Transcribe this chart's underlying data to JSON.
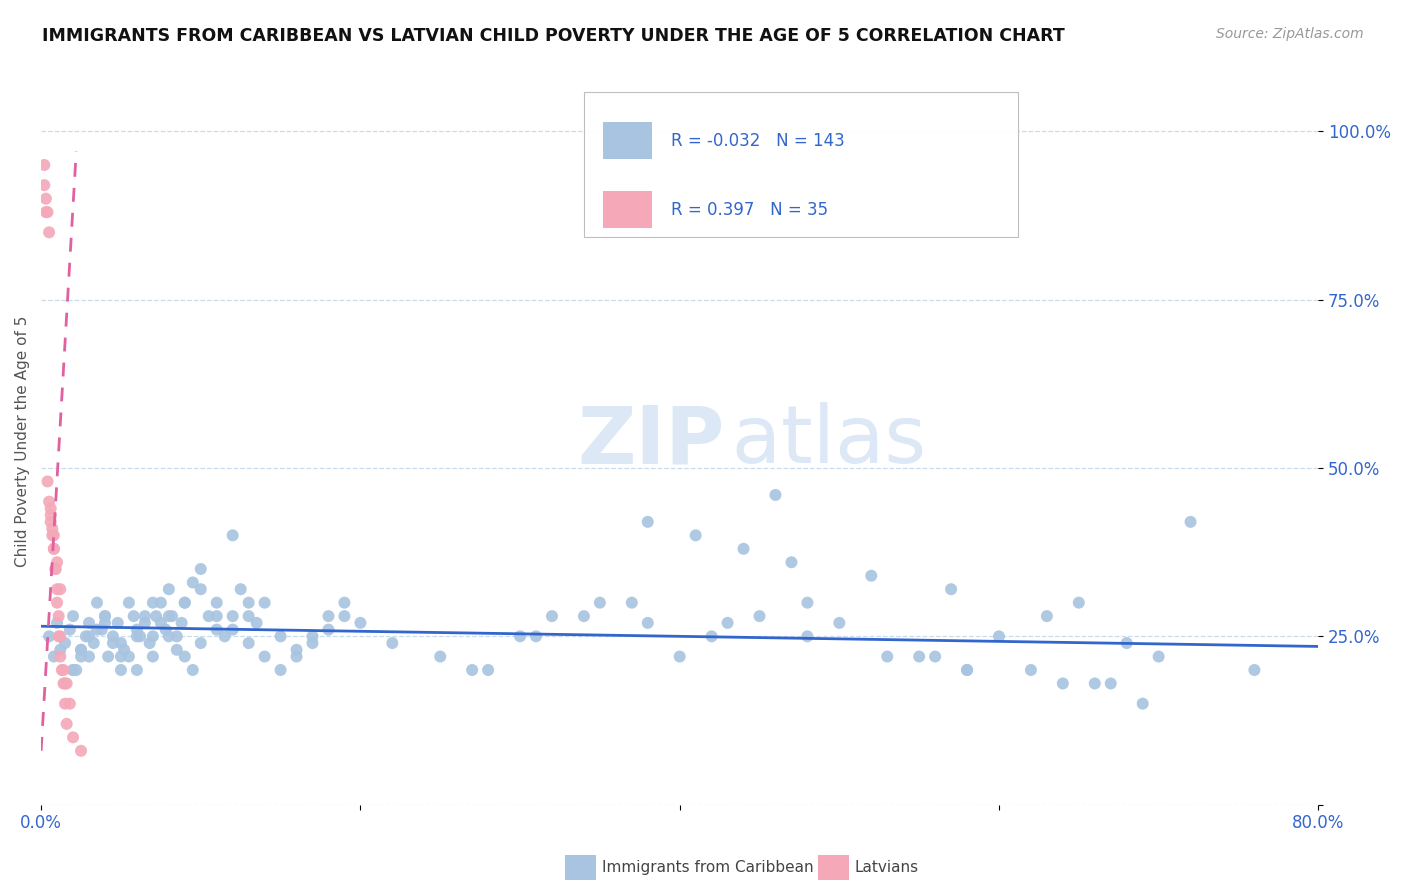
{
  "title": "IMMIGRANTS FROM CARIBBEAN VS LATVIAN CHILD POVERTY UNDER THE AGE OF 5 CORRELATION CHART",
  "source": "Source: ZipAtlas.com",
  "ylabel": "Child Poverty Under the Age of 5",
  "xlim": [
    0.0,
    0.8
  ],
  "ylim": [
    0.0,
    1.08
  ],
  "blue_R": "-0.032",
  "blue_N": "143",
  "pink_R": "0.397",
  "pink_N": "35",
  "blue_color": "#a8c4e0",
  "pink_color": "#f4a8b8",
  "blue_line_color": "#3366cc",
  "pink_line_color": "#e060a0",
  "legend_label_blue": "Immigrants from Caribbean",
  "legend_label_pink": "Latvians",
  "blue_scatter_x": [
    0.005,
    0.008,
    0.01,
    0.012,
    0.015,
    0.018,
    0.02,
    0.022,
    0.025,
    0.028,
    0.03,
    0.033,
    0.035,
    0.038,
    0.04,
    0.042,
    0.045,
    0.048,
    0.05,
    0.052,
    0.055,
    0.058,
    0.06,
    0.062,
    0.065,
    0.068,
    0.07,
    0.072,
    0.075,
    0.078,
    0.08,
    0.082,
    0.085,
    0.088,
    0.09,
    0.095,
    0.1,
    0.105,
    0.11,
    0.115,
    0.12,
    0.125,
    0.13,
    0.135,
    0.14,
    0.15,
    0.16,
    0.17,
    0.18,
    0.19,
    0.02,
    0.025,
    0.03,
    0.035,
    0.04,
    0.045,
    0.05,
    0.055,
    0.06,
    0.065,
    0.07,
    0.075,
    0.08,
    0.085,
    0.09,
    0.095,
    0.1,
    0.11,
    0.12,
    0.13,
    0.015,
    0.02,
    0.025,
    0.03,
    0.04,
    0.05,
    0.06,
    0.07,
    0.08,
    0.09,
    0.1,
    0.11,
    0.12,
    0.13,
    0.14,
    0.15,
    0.16,
    0.17,
    0.18,
    0.19,
    0.2,
    0.22,
    0.25,
    0.27,
    0.3,
    0.32,
    0.35,
    0.38,
    0.4,
    0.42,
    0.45,
    0.48,
    0.5,
    0.55,
    0.58,
    0.6,
    0.63,
    0.65,
    0.68,
    0.7,
    0.38,
    0.41,
    0.44,
    0.47,
    0.52,
    0.57,
    0.62,
    0.67,
    0.28,
    0.31,
    0.34,
    0.37,
    0.43,
    0.48,
    0.53,
    0.58,
    0.64,
    0.69,
    0.46,
    0.56,
    0.66,
    0.76,
    0.72
  ],
  "blue_scatter_y": [
    0.25,
    0.22,
    0.27,
    0.23,
    0.24,
    0.26,
    0.28,
    0.2,
    0.22,
    0.25,
    0.27,
    0.24,
    0.3,
    0.26,
    0.28,
    0.22,
    0.25,
    0.27,
    0.24,
    0.23,
    0.3,
    0.28,
    0.26,
    0.25,
    0.27,
    0.24,
    0.22,
    0.28,
    0.3,
    0.26,
    0.32,
    0.28,
    0.25,
    0.27,
    0.3,
    0.33,
    0.35,
    0.28,
    0.3,
    0.25,
    0.4,
    0.32,
    0.28,
    0.27,
    0.3,
    0.25,
    0.22,
    0.24,
    0.26,
    0.28,
    0.2,
    0.23,
    0.22,
    0.26,
    0.28,
    0.24,
    0.2,
    0.22,
    0.25,
    0.28,
    0.3,
    0.27,
    0.25,
    0.23,
    0.22,
    0.2,
    0.24,
    0.26,
    0.28,
    0.3,
    0.18,
    0.2,
    0.23,
    0.25,
    0.27,
    0.22,
    0.2,
    0.25,
    0.28,
    0.3,
    0.32,
    0.28,
    0.26,
    0.24,
    0.22,
    0.2,
    0.23,
    0.25,
    0.28,
    0.3,
    0.27,
    0.24,
    0.22,
    0.2,
    0.25,
    0.28,
    0.3,
    0.27,
    0.22,
    0.25,
    0.28,
    0.3,
    0.27,
    0.22,
    0.2,
    0.25,
    0.28,
    0.3,
    0.24,
    0.22,
    0.42,
    0.4,
    0.38,
    0.36,
    0.34,
    0.32,
    0.2,
    0.18,
    0.2,
    0.25,
    0.28,
    0.3,
    0.27,
    0.25,
    0.22,
    0.2,
    0.18,
    0.15,
    0.46,
    0.22,
    0.18,
    0.2,
    0.42
  ],
  "pink_scatter_x": [
    0.002,
    0.003,
    0.004,
    0.005,
    0.006,
    0.007,
    0.008,
    0.009,
    0.01,
    0.011,
    0.012,
    0.013,
    0.014,
    0.015,
    0.016,
    0.002,
    0.003,
    0.005,
    0.006,
    0.007,
    0.008,
    0.009,
    0.01,
    0.011,
    0.012,
    0.014,
    0.016,
    0.018,
    0.004,
    0.006,
    0.008,
    0.01,
    0.012,
    0.02,
    0.025
  ],
  "pink_scatter_y": [
    0.95,
    0.9,
    0.88,
    0.85,
    0.42,
    0.4,
    0.38,
    0.35,
    0.3,
    0.25,
    0.22,
    0.2,
    0.18,
    0.15,
    0.12,
    0.92,
    0.88,
    0.45,
    0.43,
    0.41,
    0.38,
    0.35,
    0.32,
    0.28,
    0.25,
    0.2,
    0.18,
    0.15,
    0.48,
    0.44,
    0.4,
    0.36,
    0.32,
    0.1,
    0.08
  ],
  "blue_trend_x": [
    0.0,
    0.8
  ],
  "blue_trend_y": [
    0.265,
    0.235
  ],
  "pink_trend_x": [
    0.0,
    0.022
  ],
  "pink_trend_y": [
    0.08,
    0.97
  ]
}
